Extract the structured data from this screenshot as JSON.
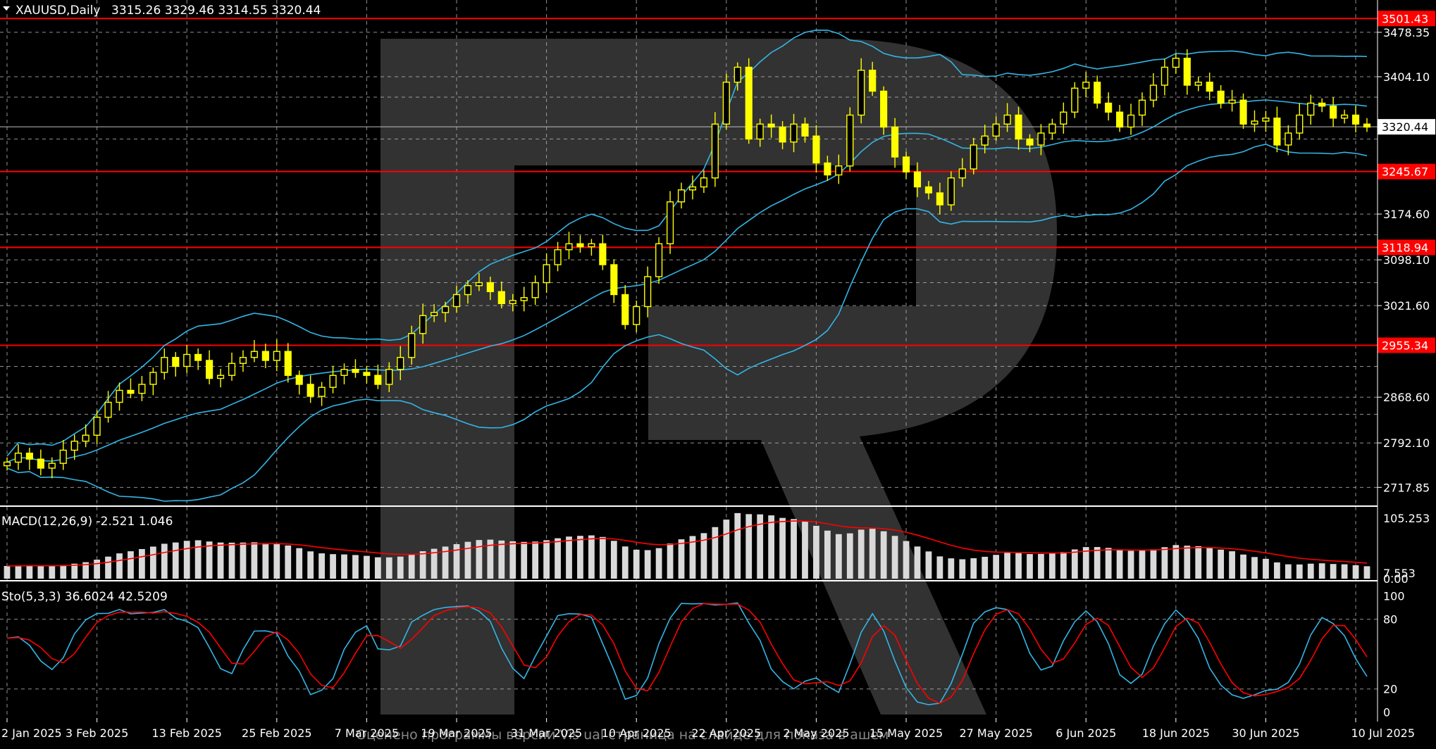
{
  "header": {
    "symbol": "XAUUSD,Daily",
    "ohlc": "3315.26 3329.46 3314.55 3320.44"
  },
  "macd_label": "MACD(12,26,9) -2.521 1.046",
  "sto_label": "Sto(5,3,3) 36.6024 42.5209",
  "watermark_text": "Оценено программы версии Vis ual страница на слайде для показа в ашем",
  "price_tag": "3320.44",
  "colors": {
    "background": "#000000",
    "candle": "#ffff00",
    "bollinger": "#33b5e5",
    "level": "#ff0000",
    "macd_hist": "#d9d9d9",
    "macd_signal": "#ff0000",
    "sto_main": "#33b5e5",
    "sto_signal": "#ff0000",
    "grid": "#c0c0c0"
  },
  "chart_data": [
    {
      "type": "candlestick",
      "title": "XAUUSD,Daily",
      "ylim": [
        2690,
        3530
      ],
      "y_ticks": [
        "3478.35",
        "3404.10",
        "3174.60",
        "3098.10",
        "3021.60",
        "2868.60",
        "2792.10",
        "2717.85"
      ],
      "levels": [
        {
          "value": 3501.43,
          "label": "3501.43"
        },
        {
          "value": 3245.67,
          "label": "3245.67"
        },
        {
          "value": 3118.94,
          "label": "3118.94"
        },
        {
          "value": 2955.34,
          "label": "2955.34"
        }
      ],
      "x_ticks": [
        "2 Jan 2025",
        "3 Feb 2025",
        "13 Feb 2025",
        "25 Feb 2025",
        "7 Mar 2025",
        "19 Mar 2025",
        "31 Mar 2025",
        "10 Apr 2025",
        "22 Apr 2025",
        "2 May 2025",
        "15 May 2025",
        "27 May 2025",
        "6 Jun 2025",
        "18 Jun 2025",
        "30 Jun 2025",
        "10 Jul 2025"
      ],
      "x_tick_index": [
        0,
        8,
        16,
        24,
        32,
        40,
        48,
        56,
        64,
        72,
        80,
        88,
        96,
        104,
        112,
        120
      ],
      "closes": [
        2760,
        2775,
        2765,
        2750,
        2758,
        2780,
        2795,
        2805,
        2835,
        2860,
        2880,
        2875,
        2890,
        2910,
        2935,
        2920,
        2940,
        2930,
        2900,
        2905,
        2925,
        2935,
        2945,
        2930,
        2945,
        2905,
        2890,
        2870,
        2885,
        2905,
        2915,
        2910,
        2905,
        2890,
        2915,
        2935,
        2975,
        3005,
        3010,
        3020,
        3040,
        3055,
        3060,
        3045,
        3025,
        3030,
        3035,
        3060,
        3090,
        3115,
        3125,
        3120,
        3125,
        3090,
        3040,
        2990,
        3020,
        3070,
        3125,
        3195,
        3215,
        3220,
        3235,
        3325,
        3395,
        3420,
        3300,
        3325,
        3320,
        3295,
        3325,
        3305,
        3260,
        3240,
        3255,
        3340,
        3415,
        3380,
        3320,
        3270,
        3245,
        3220,
        3210,
        3190,
        3235,
        3250,
        3290,
        3305,
        3325,
        3340,
        3300,
        3290,
        3310,
        3325,
        3345,
        3385,
        3395,
        3360,
        3345,
        3320,
        3340,
        3365,
        3390,
        3420,
        3435,
        3390,
        3395,
        3380,
        3360,
        3365,
        3325,
        3330,
        3335,
        3290,
        3310,
        3340,
        3360,
        3355,
        3335,
        3340,
        3325,
        3320
      ]
    },
    {
      "type": "bar",
      "title": "MACD(12,26,9) -2.521 1.046",
      "ylim": [
        0,
        110
      ],
      "y_ticks": [
        "105.253",
        "7.553",
        "0.00"
      ]
    },
    {
      "type": "line",
      "title": "Sto(5,3,3) 36.6024 42.5209",
      "ylim": [
        -5,
        110
      ],
      "y_ticks": [
        "100",
        "80",
        "20",
        "0"
      ]
    }
  ]
}
